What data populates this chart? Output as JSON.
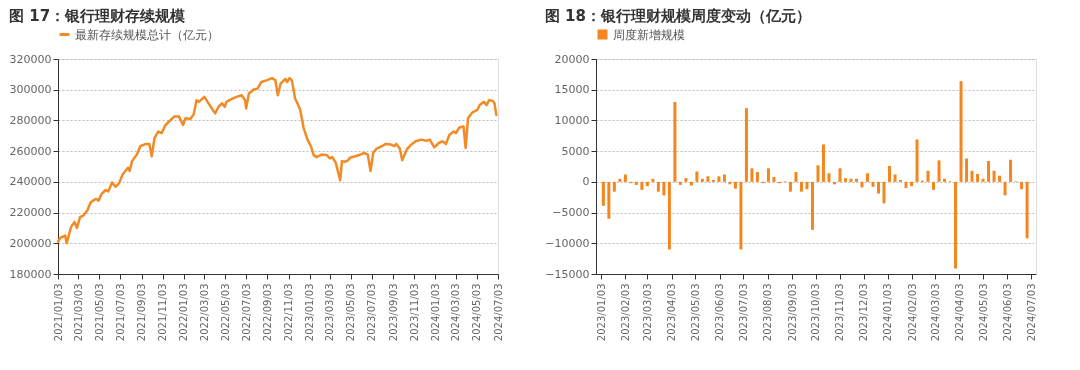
{
  "chart_data": [
    {
      "type": "line",
      "title": "图 17：银行理财存续规模",
      "x": [
        "2021-01-03",
        "2021-01-10",
        "2021-01-24",
        "2021-01-28",
        "2021-02-10",
        "2021-02-20",
        "2021-02-27",
        "2021-03-08",
        "2021-03-18",
        "2021-03-29",
        "2021-04-08",
        "2021-04-23",
        "2021-05-01",
        "2021-05-09",
        "2021-05-21",
        "2021-05-29",
        "2021-06-09",
        "2021-06-19",
        "2021-06-29",
        "2021-07-10",
        "2021-07-25",
        "2021-07-30",
        "2021-08-06",
        "2021-08-20",
        "2021-08-30",
        "2021-09-15",
        "2021-09-25",
        "2021-10-02",
        "2021-10-10",
        "2021-10-21",
        "2021-10-31",
        "2021-11-10",
        "2021-11-26",
        "2021-12-06",
        "2021-12-20",
        "2022-01-01",
        "2022-01-08",
        "2022-01-22",
        "2022-02-01",
        "2022-02-09",
        "2022-02-16",
        "2022-03-04",
        "2022-03-19",
        "2022-04-04",
        "2022-04-14",
        "2022-04-24",
        "2022-05-02",
        "2022-05-07",
        "2022-05-25",
        "2022-06-05",
        "2022-06-20",
        "2022-06-30",
        "2022-07-03",
        "2022-07-11",
        "2022-07-26",
        "2022-08-05",
        "2022-08-16",
        "2022-08-31",
        "2022-09-16",
        "2022-09-26",
        "2022-10-03",
        "2022-10-11",
        "2022-10-25",
        "2022-10-30",
        "2022-11-06",
        "2022-11-13",
        "2022-11-22",
        "2022-11-29",
        "2022-12-07",
        "2022-12-17",
        "2022-12-28",
        "2023-01-07",
        "2023-01-15",
        "2023-01-23",
        "2023-02-07",
        "2023-02-22",
        "2023-03-03",
        "2023-03-10",
        "2023-03-20",
        "2023-04-02",
        "2023-04-07",
        "2023-04-15",
        "2023-04-25",
        "2023-04-30",
        "2023-05-16",
        "2023-05-31",
        "2023-06-11",
        "2023-06-21",
        "2023-06-29",
        "2023-07-07",
        "2023-07-17",
        "2023-08-01",
        "2023-08-12",
        "2023-08-27",
        "2023-09-06",
        "2023-09-12",
        "2023-09-22",
        "2023-09-29",
        "2023-10-12",
        "2023-10-23",
        "2023-11-07",
        "2023-11-23",
        "2023-12-08",
        "2023-12-18",
        "2023-12-31",
        "2024-01-13",
        "2024-01-24",
        "2024-02-03",
        "2024-02-13",
        "2024-02-26",
        "2024-03-03",
        "2024-03-13",
        "2024-03-25",
        "2024-03-31",
        "2024-04-07",
        "2024-04-20",
        "2024-05-04",
        "2024-05-11",
        "2024-05-23",
        "2024-05-31",
        "2024-06-07",
        "2024-06-18",
        "2024-06-23",
        "2024-06-28"
      ],
      "series": [
        {
          "name": "最新存续规模总计（亿元）",
          "color": "#f28a25",
          "values": [
            201000,
            203600,
            205000,
            200000,
            210700,
            213900,
            210000,
            217000,
            218200,
            221400,
            226700,
            228900,
            227800,
            232000,
            234700,
            233800,
            239600,
            236800,
            239000,
            245000,
            249200,
            247100,
            253500,
            257800,
            263200,
            264700,
            264700,
            256700,
            268500,
            272800,
            271800,
            276700,
            280300,
            282500,
            282500,
            277100,
            281400,
            281000,
            284000,
            293200,
            292100,
            295300,
            290000,
            284600,
            288900,
            291100,
            288900,
            292100,
            294300,
            295300,
            296400,
            293200,
            287800,
            297500,
            300300,
            300700,
            305000,
            306100,
            307600,
            306100,
            296400,
            303900,
            307100,
            305000,
            307600,
            306100,
            294300,
            291100,
            286800,
            275000,
            267500,
            263200,
            257400,
            256100,
            257800,
            257400,
            255300,
            256100,
            252500,
            241100,
            253500,
            253100,
            254000,
            255700,
            256700,
            257800,
            258900,
            257800,
            247100,
            258900,
            261700,
            263200,
            264700,
            264300,
            263200,
            264700,
            261700,
            254000,
            261000,
            263800,
            266400,
            267500,
            266800,
            267500,
            262500,
            265300,
            266400,
            264700,
            270700,
            272800,
            271800,
            275400,
            276000,
            262100,
            281400,
            285300,
            286800,
            290000,
            292100,
            290000,
            293200,
            292600,
            291100,
            283600
          ]
        }
      ],
      "xlim": [
        "2021-01-03",
        "2024-07-03"
      ],
      "xticks": [
        {
          "value": "2021-01-03",
          "label": "2021/01/03"
        },
        {
          "value": "2021-03-03",
          "label": "2021/03/03"
        },
        {
          "value": "2021-05-03",
          "label": "2021/05/03"
        },
        {
          "value": "2021-07-03",
          "label": "2021/07/03"
        },
        {
          "value": "2021-09-03",
          "label": "2021/09/03"
        },
        {
          "value": "2021-11-03",
          "label": "2021/11/03"
        },
        {
          "value": "2022-01-03",
          "label": "2022/01/03"
        },
        {
          "value": "2022-03-03",
          "label": "2022/03/03"
        },
        {
          "value": "2022-05-03",
          "label": "2022/05/03"
        },
        {
          "value": "2022-07-03",
          "label": "2022/07/03"
        },
        {
          "value": "2022-09-03",
          "label": "2022/09/03"
        },
        {
          "value": "2022-11-03",
          "label": "2022/11/03"
        },
        {
          "value": "2023-01-03",
          "label": "2023/01/03"
        },
        {
          "value": "2023-03-03",
          "label": "2023/03/03"
        },
        {
          "value": "2023-05-03",
          "label": "2023/05/03"
        },
        {
          "value": "2023-07-03",
          "label": "2023/07/03"
        },
        {
          "value": "2023-09-03",
          "label": "2023/09/03"
        },
        {
          "value": "2023-11-03",
          "label": "2023/11/03"
        },
        {
          "value": "2024-01-03",
          "label": "2024/01/03"
        },
        {
          "value": "2024-03-03",
          "label": "2024/03/03"
        },
        {
          "value": "2024-05-03",
          "label": "2024/05/03"
        },
        {
          "value": "2024-07-03",
          "label": "2024/07/03"
        }
      ],
      "ylim": [
        180000,
        320000
      ],
      "yticks": [
        180000,
        200000,
        220000,
        240000,
        260000,
        280000,
        300000,
        320000
      ],
      "grid": "y",
      "legend": "top"
    },
    {
      "type": "bar",
      "title": "图 18：银行理财规模周度变动（亿元）",
      "x": [
        "2023-01-06",
        "2023-01-13",
        "2023-01-20",
        "2023-01-27",
        "2023-02-03",
        "2023-02-10",
        "2023-02-17",
        "2023-02-24",
        "2023-03-03",
        "2023-03-10",
        "2023-03-17",
        "2023-03-24",
        "2023-03-31",
        "2023-04-07",
        "2023-04-14",
        "2023-04-21",
        "2023-04-28",
        "2023-05-05",
        "2023-05-12",
        "2023-05-19",
        "2023-05-26",
        "2023-06-02",
        "2023-06-09",
        "2023-06-16",
        "2023-06-23",
        "2023-06-30",
        "2023-07-07",
        "2023-07-14",
        "2023-07-21",
        "2023-07-28",
        "2023-08-04",
        "2023-08-11",
        "2023-08-18",
        "2023-08-25",
        "2023-09-01",
        "2023-09-08",
        "2023-09-15",
        "2023-09-22",
        "2023-09-29",
        "2023-10-06",
        "2023-10-13",
        "2023-10-20",
        "2023-10-27",
        "2023-11-03",
        "2023-11-10",
        "2023-11-17",
        "2023-11-24",
        "2023-12-01",
        "2023-12-08",
        "2023-12-15",
        "2023-12-22",
        "2023-12-29",
        "2024-01-05",
        "2024-01-12",
        "2024-01-19",
        "2024-01-26",
        "2024-02-02",
        "2024-02-09",
        "2024-02-16",
        "2024-02-23",
        "2024-03-01",
        "2024-03-08",
        "2024-03-15",
        "2024-03-22",
        "2024-03-29",
        "2024-04-05",
        "2024-04-12",
        "2024-04-19",
        "2024-04-26",
        "2024-05-03",
        "2024-05-10",
        "2024-05-17",
        "2024-05-24",
        "2024-05-31",
        "2024-06-07",
        "2024-06-14",
        "2024-06-21",
        "2024-06-28"
      ],
      "series": [
        {
          "name": "周度新增规模",
          "color": "#f5861f",
          "values": [
            -3900,
            -6000,
            -1600,
            500,
            1200,
            -200,
            -500,
            -1300,
            -700,
            500,
            -1600,
            -2200,
            -11000,
            13000,
            -500,
            600,
            -600,
            1700,
            500,
            900,
            300,
            900,
            1200,
            -400,
            -1100,
            -11000,
            12000,
            2200,
            1600,
            -200,
            2200,
            800,
            -200,
            100,
            -1600,
            1600,
            -1600,
            -1200,
            -7800,
            2700,
            6100,
            1400,
            -400,
            2200,
            600,
            500,
            500,
            -900,
            1400,
            -800,
            -1900,
            -3500,
            2600,
            1200,
            300,
            -1000,
            -700,
            6900,
            200,
            1800,
            -1300,
            3500,
            500,
            100,
            -14100,
            16400,
            3800,
            1800,
            1300,
            500,
            3400,
            1800,
            1000,
            -2200,
            3600,
            100,
            -1200,
            -9200
          ]
        }
      ],
      "xlim": [
        "2023-01-03",
        "2024-07-03"
      ],
      "xticks": [
        {
          "value": "2023-01-03",
          "label": "2023/01/03"
        },
        {
          "value": "2023-02-03",
          "label": "2023/02/03"
        },
        {
          "value": "2023-03-03",
          "label": "2023/03/03"
        },
        {
          "value": "2023-04-03",
          "label": "2023/04/03"
        },
        {
          "value": "2023-05-03",
          "label": "2023/05/03"
        },
        {
          "value": "2023-06-03",
          "label": "2023/06/03"
        },
        {
          "value": "2023-07-03",
          "label": "2023/07/03"
        },
        {
          "value": "2023-08-03",
          "label": "2023/08/03"
        },
        {
          "value": "2023-09-03",
          "label": "2023/09/03"
        },
        {
          "value": "2023-10-03",
          "label": "2023/10/03"
        },
        {
          "value": "2023-11-03",
          "label": "2023/11/03"
        },
        {
          "value": "2023-12-03",
          "label": "2023/12/03"
        },
        {
          "value": "2024-01-03",
          "label": "2024/01/03"
        },
        {
          "value": "2024-02-03",
          "label": "2024/02/03"
        },
        {
          "value": "2024-03-03",
          "label": "2024/03/03"
        },
        {
          "value": "2024-04-03",
          "label": "2024/04/03"
        },
        {
          "value": "2024-05-03",
          "label": "2024/05/03"
        },
        {
          "value": "2024-06-03",
          "label": "2024/06/03"
        },
        {
          "value": "2024-07-03",
          "label": "2024/07/03"
        }
      ],
      "ylim": [
        -15000,
        20000
      ],
      "yticks": [
        -15000,
        -10000,
        -5000,
        0,
        5000,
        10000,
        15000,
        20000
      ],
      "grid": "y",
      "legend": "top"
    }
  ]
}
